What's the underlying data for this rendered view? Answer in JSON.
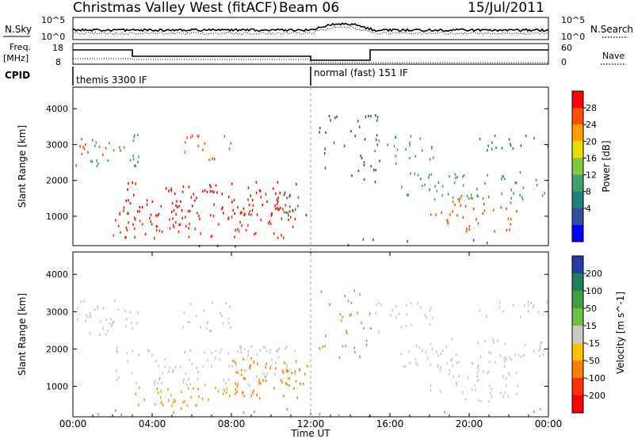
{
  "header": {
    "title": "Christmas Valley West (fitACF)",
    "beam": "Beam 06",
    "date": "15/Jul/2011"
  },
  "top_panels": {
    "nsky_label": "N.Sky",
    "nsearch_label": "N.Search",
    "nsky_ticks": [
      "10^5",
      "10^0"
    ],
    "nsearch_ticks": [
      "10^5",
      "10^0"
    ],
    "freq_label_line1": "Freq.",
    "freq_label_line2": "[MHz]",
    "freq_ticks": [
      "18",
      "8"
    ],
    "nave_label": "Nave",
    "nave_ticks": [
      "60",
      "0"
    ],
    "cpid_label": "CPID",
    "cpid_1": "themis 3300 IF",
    "cpid_2": "normal (fast) 151 IF"
  },
  "chart_data": [
    {
      "type": "heatmap",
      "name": "power-panel",
      "ylabel": "Slant Range [km]",
      "y_ticks": [
        1000,
        2000,
        3000,
        4000
      ],
      "ylim": [
        180,
        4600
      ],
      "xlim": [
        0,
        24
      ],
      "colorbar_label": "Power [dB]",
      "colorbar_ticks": [
        "28",
        "24",
        "20",
        "16",
        "12",
        "8",
        "4"
      ],
      "colorbar_colors": [
        "#ff0000",
        "#ff5000",
        "#ffa000",
        "#e8dc00",
        "#80c840",
        "#40a070",
        "#208078",
        "#3050a0",
        "#0000ff"
      ],
      "bands": [
        {
          "t": [
            0.1,
            3.3
          ],
          "r": [
            2400,
            3350
          ],
          "color": "#40a070",
          "d": 0.4
        },
        {
          "t": [
            0.2,
            2.5
          ],
          "r": [
            2700,
            3200
          ],
          "color": "#ff5000",
          "d": 0.35
        },
        {
          "t": [
            2.5,
            11.3
          ],
          "r": [
            1050,
            2000
          ],
          "color": "#ff0000",
          "d": 0.55
        },
        {
          "t": [
            2.0,
            11.3
          ],
          "r": [
            400,
            1350
          ],
          "color": "#ff2000",
          "d": 0.5
        },
        {
          "t": [
            5.5,
            8.0
          ],
          "r": [
            2500,
            3300
          ],
          "color": "#ff5000",
          "d": 0.35
        },
        {
          "t": [
            10.5,
            11.8
          ],
          "r": [
            900,
            1700
          ],
          "color": "#208078",
          "d": 0.5
        },
        {
          "t": [
            12.4,
            15.5
          ],
          "r": [
            1800,
            4000
          ],
          "color": "#3050a0",
          "d": 0.25
        },
        {
          "t": [
            15.2,
            18.2
          ],
          "r": [
            2500,
            3300
          ],
          "color": "#40a070",
          "d": 0.4
        },
        {
          "t": [
            16.5,
            24.0
          ],
          "r": [
            1500,
            2300
          ],
          "color": "#40a070",
          "d": 0.45
        },
        {
          "t": [
            18.0,
            22.5
          ],
          "r": [
            600,
            1600
          ],
          "color": "#ff5000",
          "d": 0.4
        },
        {
          "t": [
            20.5,
            24.0
          ],
          "r": [
            2800,
            3300
          ],
          "color": "#208078",
          "d": 0.4
        },
        {
          "t": [
            0.0,
            24.0
          ],
          "r": [
            180,
            420
          ],
          "color": "#3050a0",
          "d": 0.08
        }
      ]
    },
    {
      "type": "heatmap",
      "name": "velocity-panel",
      "ylabel": "Slant Range [km]",
      "y_ticks": [
        1000,
        2000,
        3000,
        4000
      ],
      "ylim": [
        180,
        4600
      ],
      "xlim": [
        0,
        24
      ],
      "xlabel": "Time UT",
      "x_tick_labels": [
        "00:00",
        "04:00",
        "08:00",
        "12:00",
        "16:00",
        "20:00",
        "00:00"
      ],
      "colorbar_label": "Velocity [m s^-1]",
      "colorbar_ticks": [
        "200",
        "100",
        "50",
        "15",
        "-15",
        "-50",
        "-100",
        "-200"
      ],
      "colorbar_colors": [
        "#2040a0",
        "#208060",
        "#40a040",
        "#70c040",
        "#c8c8c8",
        "#ffc000",
        "#ff8000",
        "#ff3000",
        "#ff0000"
      ],
      "bands": [
        {
          "t": [
            0.1,
            3.3
          ],
          "r": [
            2400,
            3350
          ],
          "color": "#c8c8c8",
          "d": 0.55
        },
        {
          "t": [
            2.0,
            11.3
          ],
          "r": [
            1050,
            2100
          ],
          "color": "#c8c8c8",
          "d": 0.5
        },
        {
          "t": [
            3.0,
            8.0
          ],
          "r": [
            500,
            1000
          ],
          "color": "#ffa000",
          "d": 0.7
        },
        {
          "t": [
            8.0,
            11.8
          ],
          "r": [
            700,
            1800
          ],
          "color": "#ff8000",
          "d": 0.7
        },
        {
          "t": [
            5.5,
            8.0
          ],
          "r": [
            2500,
            3300
          ],
          "color": "#c8c8c8",
          "d": 0.5
        },
        {
          "t": [
            12.4,
            15.0
          ],
          "r": [
            1800,
            3600
          ],
          "color": "#70c040",
          "d": 0.3
        },
        {
          "t": [
            15.2,
            18.2
          ],
          "r": [
            2500,
            3300
          ],
          "color": "#c8c8c8",
          "d": 0.45
        },
        {
          "t": [
            16.5,
            24.0
          ],
          "r": [
            1500,
            2300
          ],
          "color": "#c8c8c8",
          "d": 0.5
        },
        {
          "t": [
            18.0,
            22.5
          ],
          "r": [
            600,
            1600
          ],
          "color": "#c8c8c8",
          "d": 0.45
        },
        {
          "t": [
            20.5,
            24.0
          ],
          "r": [
            2800,
            3300
          ],
          "color": "#c8c8c8",
          "d": 0.4
        },
        {
          "t": [
            0.0,
            24.0
          ],
          "r": [
            180,
            450
          ],
          "color": "#70c040",
          "d": 0.1
        }
      ]
    }
  ]
}
